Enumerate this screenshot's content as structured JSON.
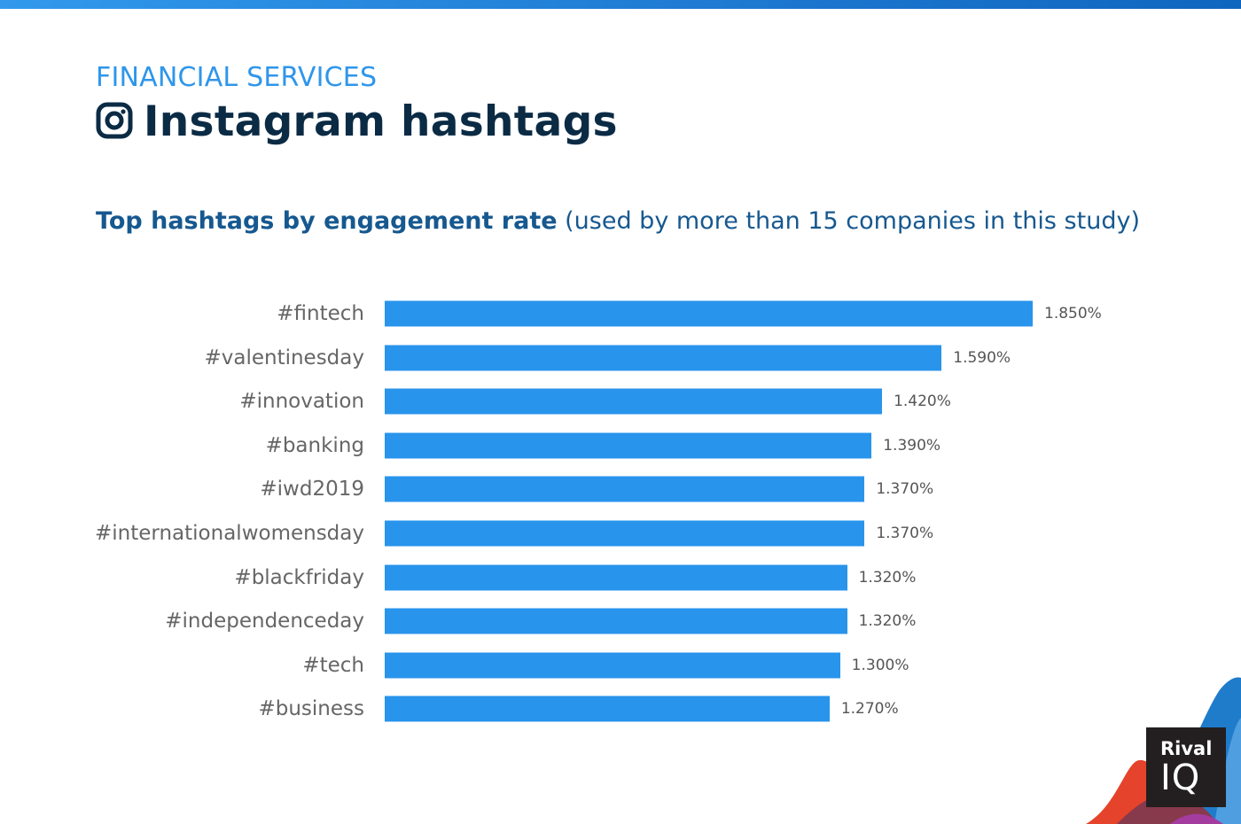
{
  "header": {
    "kicker": "FINANCIAL SERVICES",
    "title": "Instagram hashtags",
    "icon": "instagram-icon"
  },
  "brand": {
    "name_line1": "Rival",
    "name_line2": "IQ"
  },
  "colors": {
    "bar": "#2894ec",
    "kicker": "#2f96ea",
    "title": "#0b2b45",
    "subtitle": "#16588f"
  },
  "chart_data": {
    "type": "bar",
    "orientation": "horizontal",
    "title": "Top hashtags by engagement rate",
    "subtitle": "(used by more than 15 companies in this study)",
    "xlabel": "",
    "ylabel": "",
    "xlim": [
      0,
      1.85
    ],
    "grid": false,
    "categories": [
      "#fintech",
      "#valentinesday",
      "#innovation",
      "#banking",
      "#iwd2019",
      "#internationalwomensday",
      "#blackfriday",
      "#independenceday",
      "#tech",
      "#business"
    ],
    "values": [
      1.85,
      1.59,
      1.42,
      1.39,
      1.37,
      1.37,
      1.32,
      1.32,
      1.3,
      1.27
    ],
    "labels": [
      "1.850%",
      "1.590%",
      "1.420%",
      "1.390%",
      "1.370%",
      "1.370%",
      "1.320%",
      "1.320%",
      "1.300%",
      "1.270%"
    ]
  }
}
